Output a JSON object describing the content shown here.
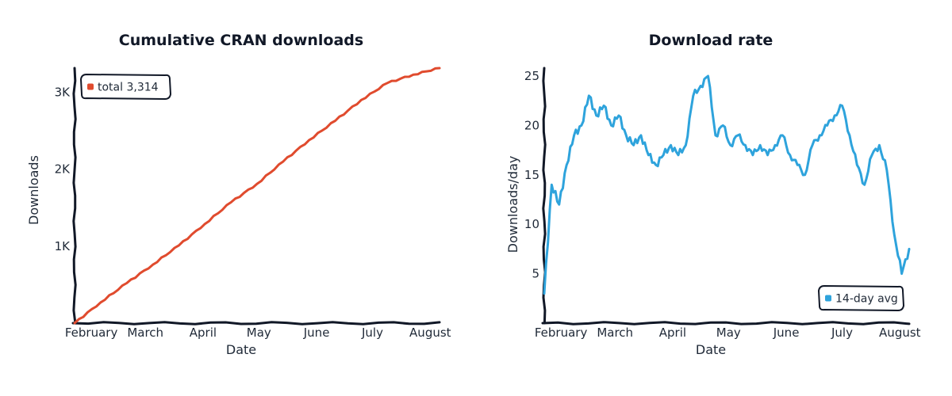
{
  "chart_data": [
    {
      "type": "line",
      "title": "Cumulative CRAN downloads",
      "xlabel": "Date",
      "ylabel": "Downloads",
      "x_ticks": [
        "February",
        "March",
        "April",
        "May",
        "June",
        "July",
        "August"
      ],
      "y_ticks": [
        "1K",
        "2K",
        "3K"
      ],
      "ylim": [
        0,
        3314
      ],
      "legend": {
        "position": "top-left",
        "label": "total 3,314"
      },
      "series": [
        {
          "color": "#e04b2e",
          "x": [
            "2024-01-23",
            "2024-02-06",
            "2024-02-20",
            "2024-03-05",
            "2024-03-19",
            "2024-04-02",
            "2024-04-16",
            "2024-04-30",
            "2024-05-14",
            "2024-05-28",
            "2024-06-11",
            "2024-06-25",
            "2024-07-09",
            "2024-07-23",
            "2024-08-06"
          ],
          "values": [
            0,
            270,
            520,
            760,
            1010,
            1290,
            1570,
            1810,
            2100,
            2380,
            2630,
            2900,
            3120,
            3230,
            3314
          ]
        }
      ]
    },
    {
      "type": "line",
      "title": "Download rate",
      "xlabel": "Date",
      "ylabel": "Downloads/day",
      "x_ticks": [
        "February",
        "March",
        "April",
        "May",
        "June",
        "July",
        "August"
      ],
      "y_ticks": [
        "5",
        "10",
        "15",
        "20",
        "25"
      ],
      "ylim": [
        0,
        25.8
      ],
      "legend": {
        "position": "bottom-right",
        "label": "14-day avg"
      },
      "series": [
        {
          "color": "#2ea3dc",
          "x": [
            "2024-01-23",
            "2024-01-27",
            "2024-01-31",
            "2024-02-04",
            "2024-02-08",
            "2024-02-12",
            "2024-02-16",
            "2024-02-20",
            "2024-02-24",
            "2024-02-28",
            "2024-03-03",
            "2024-03-07",
            "2024-03-11",
            "2024-03-15",
            "2024-03-19",
            "2024-03-23",
            "2024-03-27",
            "2024-03-31",
            "2024-04-04",
            "2024-04-08",
            "2024-04-12",
            "2024-04-16",
            "2024-04-20",
            "2024-04-24",
            "2024-04-28",
            "2024-05-02",
            "2024-05-06",
            "2024-05-10",
            "2024-05-14",
            "2024-05-18",
            "2024-05-22",
            "2024-05-26",
            "2024-05-30",
            "2024-06-03",
            "2024-06-07",
            "2024-06-11",
            "2024-06-15",
            "2024-06-19",
            "2024-06-23",
            "2024-06-27",
            "2024-07-01",
            "2024-07-05",
            "2024-07-09",
            "2024-07-13",
            "2024-07-17",
            "2024-07-21",
            "2024-07-25",
            "2024-07-29",
            "2024-08-02",
            "2024-08-06"
          ],
          "values": [
            3,
            14,
            12,
            16,
            19,
            20,
            23,
            21,
            22,
            20,
            21,
            19,
            18,
            19,
            17,
            16,
            17,
            18,
            17,
            18,
            23,
            24,
            25,
            19,
            20,
            18,
            19,
            18,
            17,
            18,
            17,
            18,
            19,
            17,
            16,
            15,
            18,
            19,
            20,
            21,
            22,
            19,
            16,
            14,
            17,
            18,
            15.5,
            9,
            5,
            7.5
          ]
        }
      ]
    }
  ]
}
